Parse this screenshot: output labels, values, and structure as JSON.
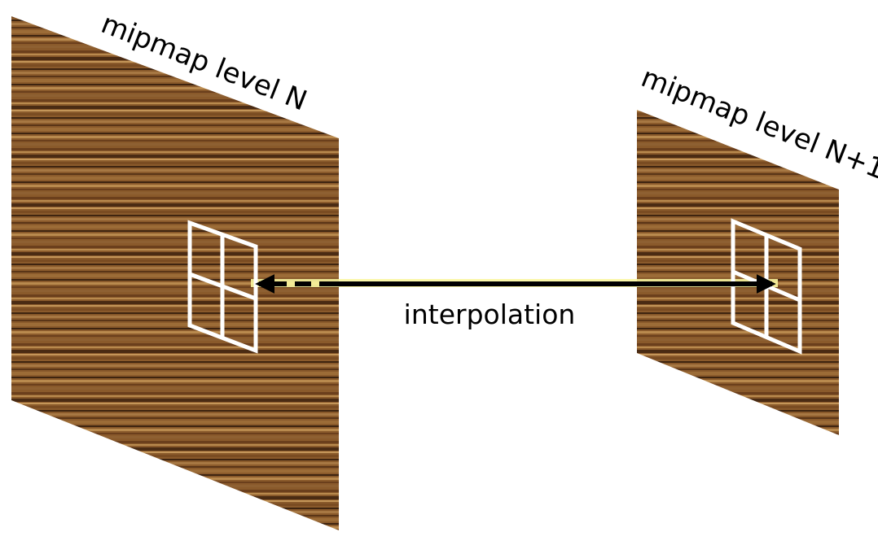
{
  "labels": {
    "level_n": "mipmap level N",
    "level_n1": "mipmap level N+1",
    "interpolation": "interpolation"
  },
  "colors": {
    "wood_base": "#8a5a2b",
    "wood_light": "#b98a4e",
    "wood_dark": "#3e2410",
    "highlight": "#f5f04a",
    "grid_lines": "#ffffff",
    "arrow": "#000000"
  }
}
